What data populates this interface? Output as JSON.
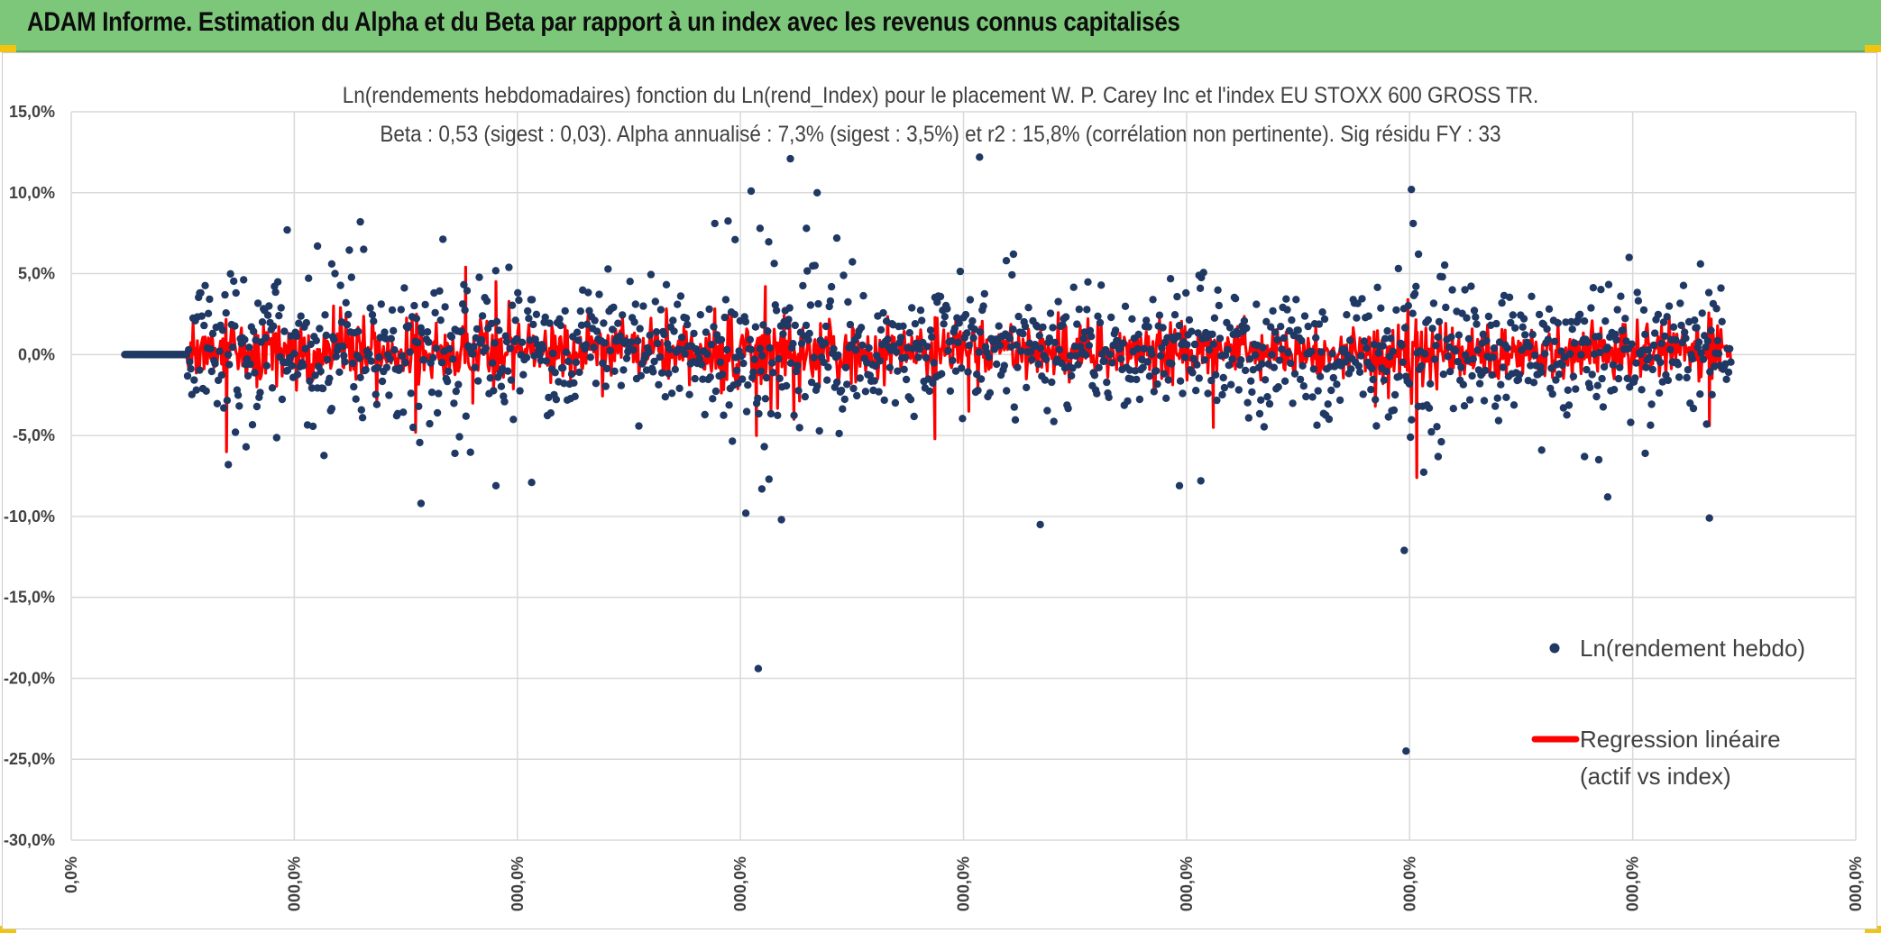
{
  "header": {
    "title": "ADAM Informe. Estimation du Alpha et du Beta par rapport à un index avec les revenus connus capitalisés"
  },
  "colors": {
    "banner": "#7dc77a",
    "points": "#1f3864",
    "regression": "#ff0000",
    "grid": "#d9d9d9"
  },
  "chart_data": {
    "type": "scatter",
    "title_line1": "Ln(rendements hebdomadaires) fonction du Ln(rend_Index) pour le placement W. P. Carey Inc et l'index EU STOXX 600 GROSS TR.",
    "title_line2": "Beta : 0,53 (sigest : 0,03). Alpha annualisé : 7,3% (sigest : 3,5%) et r2 : 15,8% (corrélation non pertinente). Sig résidu FY : 33",
    "ylim": [
      -30,
      15
    ],
    "y_ticks": [
      15,
      10,
      5,
      0,
      -5,
      -10,
      -15,
      -20,
      -25,
      -30
    ],
    "y_tick_labels": [
      "15,0%",
      "10,0%",
      "5,0%",
      "0,0%",
      "-5,0%",
      "-10,0%",
      "-15,0%",
      "-20,0%",
      "-25,0%",
      "-30,0%"
    ],
    "x_tick_labels": [
      "0,0%",
      "000,0%",
      "000,0%",
      "000,0%",
      "000,0%",
      "000,0%",
      "000,0%",
      "000,0%",
      "000,0%"
    ],
    "series": [
      {
        "name": "Ln(rendement hebdo)",
        "kind": "scatter"
      },
      {
        "name_line1": "Regression linéaire",
        "name_line2": "(actif vs index)",
        "kind": "line"
      }
    ],
    "x_range_points": [
      0.03,
      0.93
    ],
    "n_points": 1460,
    "zero_segment_end": 0.035,
    "outliers": [
      [
        0.072,
        3.8
      ],
      [
        0.088,
        -6.8
      ],
      [
        0.092,
        -4.8
      ],
      [
        0.098,
        -5.7
      ],
      [
        0.121,
        7.7
      ],
      [
        0.138,
        6.7
      ],
      [
        0.162,
        8.2
      ],
      [
        0.146,
        5.6
      ],
      [
        0.196,
        -9.2
      ],
      [
        0.215,
        -6.1
      ],
      [
        0.238,
        -8.1
      ],
      [
        0.258,
        -7.9
      ],
      [
        0.381,
        10.1
      ],
      [
        0.386,
        7.8
      ],
      [
        0.372,
        7.1
      ],
      [
        0.378,
        -9.8
      ],
      [
        0.385,
        -19.4
      ],
      [
        0.387,
        -8.3
      ],
      [
        0.391,
        -7.7
      ],
      [
        0.398,
        -10.2
      ],
      [
        0.403,
        12.1
      ],
      [
        0.418,
        10.0
      ],
      [
        0.429,
        7.2
      ],
      [
        0.412,
        7.8
      ],
      [
        0.509,
        12.2
      ],
      [
        0.528,
        6.2
      ],
      [
        0.524,
        5.8
      ],
      [
        0.543,
        -10.5
      ],
      [
        0.621,
        -8.1
      ],
      [
        0.633,
        -7.8
      ],
      [
        0.632,
        4.9
      ],
      [
        0.747,
        -12.1
      ],
      [
        0.748,
        -24.5
      ],
      [
        0.751,
        10.2
      ],
      [
        0.755,
        6.2
      ],
      [
        0.752,
        8.1
      ],
      [
        0.766,
        -6.3
      ],
      [
        0.781,
        4.0
      ],
      [
        0.824,
        -5.9
      ],
      [
        0.848,
        -6.3
      ],
      [
        0.873,
        6.0
      ],
      [
        0.861,
        -8.8
      ],
      [
        0.913,
        5.6
      ],
      [
        0.918,
        -10.1
      ],
      [
        0.856,
        -6.5
      ],
      [
        0.882,
        -6.1
      ]
    ],
    "red_spikes": [
      [
        0.087,
        -6.0
      ],
      [
        0.147,
        3.0
      ],
      [
        0.193,
        -4.8
      ],
      [
        0.221,
        5.4
      ],
      [
        0.225,
        -3.0
      ],
      [
        0.238,
        4.5
      ],
      [
        0.384,
        -5.0
      ],
      [
        0.389,
        4.2
      ],
      [
        0.405,
        -4.0
      ],
      [
        0.484,
        -5.2
      ],
      [
        0.503,
        -3.5
      ],
      [
        0.64,
        -4.5
      ],
      [
        0.749,
        3.4
      ],
      [
        0.754,
        -7.6
      ],
      [
        0.918,
        -4.4
      ],
      [
        0.919,
        2.2
      ]
    ]
  }
}
